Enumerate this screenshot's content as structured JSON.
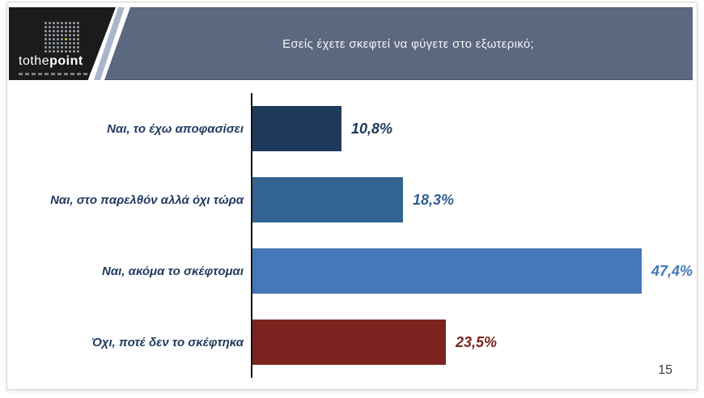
{
  "header": {
    "title": "Εσείς έχετε σκεφτεί να φύγετε στο εξωτερικό;"
  },
  "logo": {
    "brand_light": "tothe",
    "brand_bold": "point",
    "dots_icon": {
      "rows": 8,
      "cols": 9,
      "accent_row": 5,
      "accent_col": 6,
      "dot_color": "#8d939a",
      "accent_color": "#d3e02a"
    }
  },
  "chart_data": {
    "type": "bar",
    "orientation": "horizontal",
    "title": "Εσείς έχετε σκεφτεί να φύγετε στο εξωτερικό;",
    "categories": [
      "Ναι, το έχω αποφασίσει",
      "Ναι, στο παρελθόν αλλά όχι τώρα",
      "Ναι, ακόμα το σκέφτομαι",
      "Όχι, ποτέ δεν το σκέφτηκα"
    ],
    "values": [
      10.8,
      18.3,
      47.4,
      23.5
    ],
    "value_labels": [
      "10,8%",
      "18,3%",
      "47,4%",
      "23,5%"
    ],
    "bar_colors": [
      "#1f3a5c",
      "#336491",
      "#4478b8",
      "#7c231f"
    ],
    "value_label_colors": [
      "#1f3a5c",
      "#2f5f92",
      "#4478b8",
      "#7c231f"
    ],
    "category_label_color": "#1f3a5f",
    "xlim": [
      0,
      50
    ],
    "grid": false,
    "legend": false,
    "axis_line_color": "#141414"
  },
  "colors": {
    "header_background": "#5b6880",
    "header_stripe": "#a9b6c9",
    "logo_background": "#1b1b1b",
    "slide_border": "#d6d6d6"
  },
  "footer": {
    "page_number": "15"
  }
}
